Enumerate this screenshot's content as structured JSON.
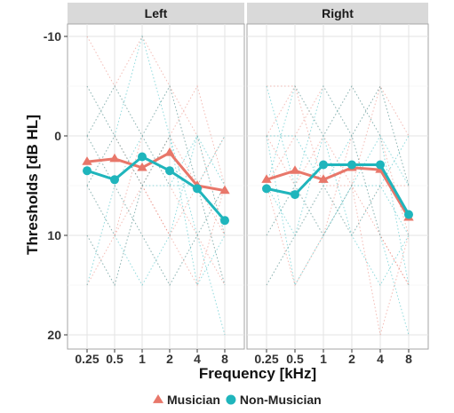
{
  "chart_data": {
    "type": "line",
    "facets": [
      "Left",
      "Right"
    ],
    "categories": [
      "0.25",
      "0.5",
      "1",
      "2",
      "4",
      "8"
    ],
    "xlabel": "Frequency [kHz]",
    "ylabel": "Thresholds [dB HL]",
    "y_reversed": true,
    "ylim": [
      -10.5,
      21
    ],
    "yticks": [
      -10,
      0,
      10,
      20
    ],
    "grid": true,
    "legend_position": "bottom",
    "series": [
      {
        "name": "Musician",
        "marker": "triangle",
        "color": "#e8776a",
        "values": {
          "Left": [
            2.6,
            2.3,
            3.2,
            1.7,
            5.0,
            5.5
          ],
          "Right": [
            4.4,
            3.5,
            4.4,
            3.2,
            3.4,
            8.2
          ]
        }
      },
      {
        "name": "Non-Musician",
        "marker": "circle",
        "color": "#1fb5bc",
        "values": {
          "Left": [
            3.5,
            4.4,
            2.1,
            3.5,
            5.3,
            8.5
          ],
          "Right": [
            5.3,
            5.9,
            2.9,
            2.9,
            2.9,
            7.9
          ]
        }
      }
    ],
    "individual_traces": {
      "Musician": {
        "Left": [
          [
            0,
            5,
            10,
            15,
            10,
            5
          ],
          [
            -10,
            -5,
            0,
            5,
            10,
            15
          ],
          [
            5,
            0,
            5,
            10,
            5,
            0
          ],
          [
            15,
            10,
            5,
            0,
            -5,
            5
          ],
          [
            0,
            -5,
            -10,
            -5,
            0,
            10
          ],
          [
            10,
            15,
            5,
            0,
            5,
            15
          ],
          [
            5,
            10,
            0,
            -5,
            5,
            10
          ],
          [
            -5,
            0,
            5,
            10,
            15,
            5
          ]
        ],
        "Right": [
          [
            5,
            0,
            -5,
            0,
            10,
            15
          ],
          [
            0,
            5,
            10,
            5,
            -5,
            0
          ],
          [
            10,
            5,
            0,
            -5,
            0,
            10
          ],
          [
            -5,
            -5,
            5,
            10,
            5,
            5
          ],
          [
            15,
            10,
            5,
            5,
            20,
            10
          ],
          [
            5,
            15,
            10,
            0,
            -5,
            5
          ],
          [
            0,
            -5,
            0,
            5,
            10,
            15
          ]
        ]
      },
      "Non-Musician": {
        "Left": [
          [
            5,
            0,
            -10,
            0,
            10,
            20
          ],
          [
            10,
            15,
            5,
            5,
            0,
            10
          ],
          [
            0,
            5,
            10,
            15,
            10,
            5
          ],
          [
            15,
            5,
            0,
            -5,
            5,
            15
          ],
          [
            -5,
            0,
            5,
            0,
            15,
            10
          ],
          [
            5,
            10,
            15,
            10,
            0,
            5
          ],
          [
            0,
            -5,
            0,
            5,
            5,
            0
          ]
        ],
        "Right": [
          [
            5,
            10,
            0,
            -5,
            0,
            15
          ],
          [
            0,
            0,
            5,
            10,
            15,
            10
          ],
          [
            15,
            10,
            5,
            0,
            -5,
            5
          ],
          [
            -5,
            5,
            10,
            5,
            5,
            0
          ],
          [
            10,
            5,
            -5,
            0,
            10,
            20
          ],
          [
            0,
            15,
            10,
            5,
            0,
            5
          ],
          [
            5,
            -5,
            0,
            10,
            5,
            10
          ]
        ]
      }
    }
  }
}
